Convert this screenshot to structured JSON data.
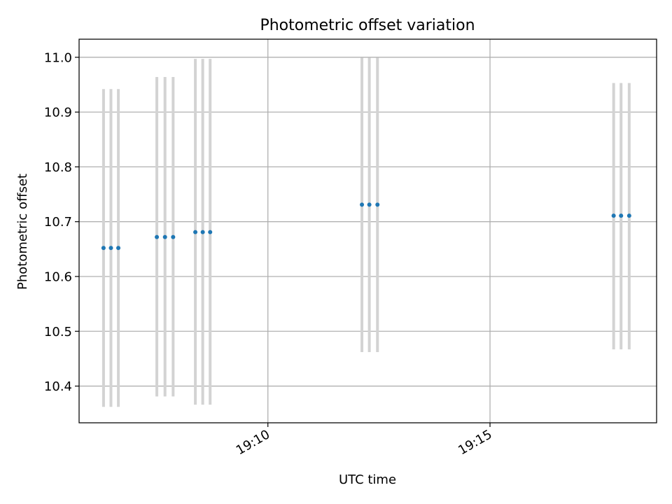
{
  "chart_data": {
    "type": "scatter",
    "title": "Photometric offset variation",
    "xlabel": "UTC time",
    "ylabel": "Photometric offset",
    "x_axis_kind": "time",
    "xlim": [
      "19:05:45",
      "19:18:45"
    ],
    "ylim": [
      10.333,
      11.033
    ],
    "x_ticks": [
      "19:10",
      "19:15"
    ],
    "y_ticks": [
      "10.4",
      "10.5",
      "10.6",
      "10.7",
      "10.8",
      "10.9",
      "11.0"
    ],
    "grid": true,
    "points": [
      {
        "x": "19:06:18",
        "y": 10.652,
        "ylow": 10.362,
        "yhigh": 10.942
      },
      {
        "x": "19:06:28",
        "y": 10.652,
        "ylow": 10.362,
        "yhigh": 10.942
      },
      {
        "x": "19:06:38",
        "y": 10.652,
        "ylow": 10.362,
        "yhigh": 10.942
      },
      {
        "x": "19:07:30",
        "y": 10.672,
        "ylow": 10.381,
        "yhigh": 10.964
      },
      {
        "x": "19:07:41",
        "y": 10.672,
        "ylow": 10.381,
        "yhigh": 10.964
      },
      {
        "x": "19:07:52",
        "y": 10.672,
        "ylow": 10.381,
        "yhigh": 10.964
      },
      {
        "x": "19:08:22",
        "y": 10.681,
        "ylow": 10.366,
        "yhigh": 10.997
      },
      {
        "x": "19:08:32",
        "y": 10.681,
        "ylow": 10.366,
        "yhigh": 10.997
      },
      {
        "x": "19:08:42",
        "y": 10.681,
        "ylow": 10.366,
        "yhigh": 10.997
      },
      {
        "x": "19:12:07",
        "y": 10.731,
        "ylow": 10.462,
        "yhigh": 10.999
      },
      {
        "x": "19:12:17",
        "y": 10.731,
        "ylow": 10.462,
        "yhigh": 10.999
      },
      {
        "x": "19:12:28",
        "y": 10.731,
        "ylow": 10.462,
        "yhigh": 10.999
      },
      {
        "x": "19:17:47",
        "y": 10.711,
        "ylow": 10.467,
        "yhigh": 10.953
      },
      {
        "x": "19:17:57",
        "y": 10.711,
        "ylow": 10.467,
        "yhigh": 10.953
      },
      {
        "x": "19:18:08",
        "y": 10.711,
        "ylow": 10.467,
        "yhigh": 10.953
      }
    ],
    "colors": {
      "point": "#1f77b4",
      "errorbar": "#d3d3d3",
      "grid": "#b0b0b0",
      "axes": "#000000"
    }
  }
}
